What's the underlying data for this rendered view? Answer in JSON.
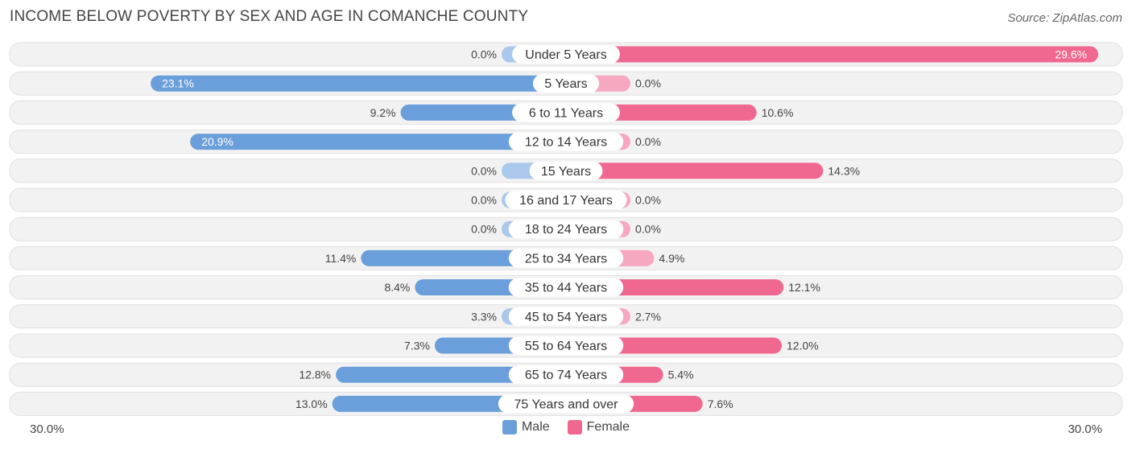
{
  "header": {
    "title": "INCOME BELOW POVERTY BY SEX AND AGE IN COMANCHE COUNTY",
    "source": "Source: ZipAtlas.com"
  },
  "axis": {
    "left_label": "30.0%",
    "right_label": "30.0%"
  },
  "legend": {
    "male_label": "Male",
    "female_label": "Female"
  },
  "colors": {
    "male": "#6a9fdb",
    "male_light": "#a9c8ec",
    "female": "#f0688f",
    "female_light": "#f6a8c0",
    "row_bg": "#f2f2f2",
    "row_border": "#e0e0e0"
  },
  "chart_data": {
    "type": "bar",
    "orientation": "horizontal-diverging",
    "title": "INCOME BELOW POVERTY BY SEX AND AGE IN COMANCHE COUNTY",
    "xlim": [
      -30,
      30
    ],
    "categories": [
      "Under 5 Years",
      "5 Years",
      "6 to 11 Years",
      "12 to 14 Years",
      "15 Years",
      "16 and 17 Years",
      "18 to 24 Years",
      "25 to 34 Years",
      "35 to 44 Years",
      "45 to 54 Years",
      "55 to 64 Years",
      "65 to 74 Years",
      "75 Years and over"
    ],
    "series": [
      {
        "name": "Male",
        "values": [
          0.0,
          23.1,
          9.2,
          20.9,
          0.0,
          0.0,
          0.0,
          11.4,
          8.4,
          3.3,
          7.3,
          12.8,
          13.0
        ],
        "labels": [
          "0.0%",
          "23.1%",
          "9.2%",
          "20.9%",
          "0.0%",
          "0.0%",
          "0.0%",
          "11.4%",
          "8.4%",
          "3.3%",
          "7.3%",
          "12.8%",
          "13.0%"
        ]
      },
      {
        "name": "Female",
        "values": [
          29.6,
          0.0,
          10.6,
          0.0,
          14.3,
          0.0,
          0.0,
          4.9,
          12.1,
          2.7,
          12.0,
          5.4,
          7.6
        ],
        "labels": [
          "29.6%",
          "0.0%",
          "10.6%",
          "0.0%",
          "14.3%",
          "0.0%",
          "0.0%",
          "4.9%",
          "12.1%",
          "2.7%",
          "12.0%",
          "5.4%",
          "7.6%"
        ]
      }
    ],
    "legend_position": "bottom-center"
  }
}
